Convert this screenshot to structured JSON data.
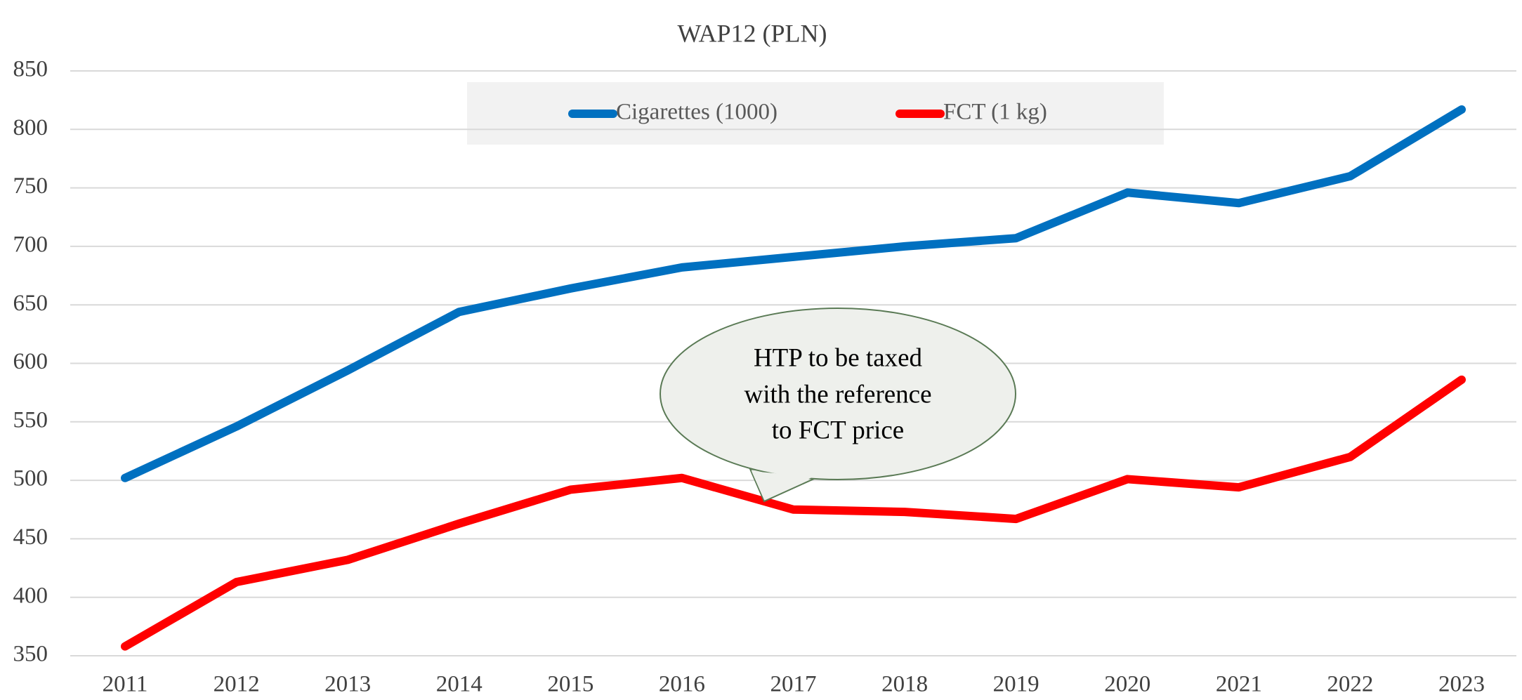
{
  "chart_data": {
    "type": "line",
    "title": "WAP12 (PLN)",
    "categories": [
      "2011",
      "2012",
      "2013",
      "2014",
      "2015",
      "2016",
      "2017",
      "2018",
      "2019",
      "2020",
      "2021",
      "2022",
      "2023"
    ],
    "series": [
      {
        "name": "Cigarettes (1000)",
        "color": "#0070c0",
        "values": [
          502,
          546,
          594,
          644,
          664,
          682,
          691,
          700,
          707,
          746,
          737,
          760,
          817
        ]
      },
      {
        "name": "FCT (1 kg)",
        "color": "#ff0000",
        "values": [
          358,
          413,
          432,
          463,
          492,
          502,
          475,
          473,
          467,
          501,
          494,
          520,
          586
        ]
      }
    ],
    "ylim": [
      350,
      850
    ],
    "yticks": [
      350,
      400,
      450,
      500,
      550,
      600,
      650,
      700,
      750,
      800,
      850
    ],
    "grid": true,
    "legend": "top",
    "annotation": {
      "lines": [
        "HTP to be taxed",
        "with the reference",
        "to FCT price"
      ]
    }
  }
}
